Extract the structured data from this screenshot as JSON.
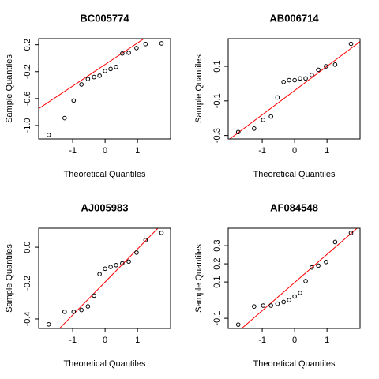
{
  "chart_data": [
    {
      "type": "scatter",
      "title": "BC005774",
      "x_label": "Theoretical Quantiles",
      "y_label": "Sample Quantiles",
      "x": [
        -1.74,
        -1.25,
        -0.97,
        -0.73,
        -0.53,
        -0.34,
        -0.17,
        0,
        0.17,
        0.34,
        0.53,
        0.73,
        0.97,
        1.25,
        1.74
      ],
      "values": [
        -1.14,
        -0.89,
        -0.63,
        -0.39,
        -0.31,
        -0.28,
        -0.26,
        -0.19,
        -0.16,
        -0.13,
        0.07,
        0.08,
        0.15,
        0.21,
        0.22
      ],
      "color": "#000000",
      "qqline": {
        "intercept": -0.094,
        "slope": 0.32,
        "color": "#ff0000"
      },
      "xlim": [
        -2.05,
        2.02
      ],
      "ylim": [
        -1.2,
        0.29
      ],
      "xticks": [
        -1,
        0,
        1
      ],
      "yticks": [
        0.2,
        -0.2,
        -0.6,
        {
          "value": -1,
          "label": "-1.0"
        }
      ]
    },
    {
      "type": "scatter",
      "title": "AB006714",
      "x_label": "Theoretical Quantiles",
      "y_label": "Sample Quantiles",
      "x": [
        -1.74,
        -1.25,
        -0.97,
        -0.73,
        -0.53,
        -0.34,
        -0.17,
        0,
        0.17,
        0.34,
        0.53,
        0.73,
        0.97,
        1.25,
        1.74
      ],
      "values": [
        -0.28,
        -0.26,
        -0.21,
        -0.19,
        -0.08,
        0.01,
        0.02,
        0.02,
        0.03,
        0.03,
        0.05,
        0.08,
        0.1,
        0.11,
        0.23
      ],
      "color": "#000000",
      "qqline": {
        "intercept": -0.04,
        "slope": 0.14,
        "color": "#ff0000"
      },
      "xlim": [
        -2.05,
        2.02
      ],
      "ylim": [
        -0.32,
        0.26
      ],
      "xticks": [
        -1,
        0,
        1
      ],
      "yticks": [
        0.1,
        -0.1,
        -0.3
      ]
    },
    {
      "type": "scatter",
      "title": "AJ005983",
      "x_label": "Theoretical Quantiles",
      "y_label": "Sample Quantiles",
      "x": [
        -1.74,
        -1.25,
        -0.97,
        -0.73,
        -0.53,
        -0.34,
        -0.17,
        0,
        0.17,
        0.34,
        0.53,
        0.73,
        0.97,
        1.25,
        1.74
      ],
      "values": [
        -0.43,
        -0.36,
        -0.36,
        -0.35,
        -0.33,
        -0.27,
        -0.15,
        -0.12,
        -0.11,
        -0.1,
        -0.09,
        -0.08,
        -0.03,
        0.04,
        0.08
      ],
      "color": "#000000",
      "qqline": {
        "intercept": -0.194,
        "slope": 0.184,
        "color": "#ff0000"
      },
      "xlim": [
        -2.05,
        2.02
      ],
      "ylim": [
        -0.453,
        0.106
      ],
      "xticks": [
        -1,
        0,
        1
      ],
      "yticks": [
        {
          "value": 0,
          "label": "0.0"
        },
        -0.2,
        -0.4
      ]
    },
    {
      "type": "scatter",
      "title": "AF084548",
      "x_label": "Theoretical Quantiles",
      "y_label": "Sample Quantiles",
      "x": [
        -1.74,
        -1.25,
        -0.97,
        -0.73,
        -0.53,
        -0.34,
        -0.17,
        0,
        0.17,
        0.34,
        0.53,
        0.73,
        0.97,
        1.25,
        1.74
      ],
      "values": [
        -0.135,
        -0.035,
        -0.03,
        -0.03,
        -0.02,
        -0.01,
        0,
        0.02,
        0.04,
        0.105,
        0.18,
        0.19,
        0.21,
        0.32,
        0.37
      ],
      "color": "#000000",
      "qqline": {
        "intercept": 0.097,
        "slope": 0.155,
        "color": "#ff0000"
      },
      "xlim": [
        -2.05,
        2.02
      ],
      "ylim": [
        -0.156,
        0.396
      ],
      "xticks": [
        -1,
        0,
        1
      ],
      "yticks": [
        0.3,
        0.2,
        0.1,
        -0.1
      ]
    }
  ]
}
